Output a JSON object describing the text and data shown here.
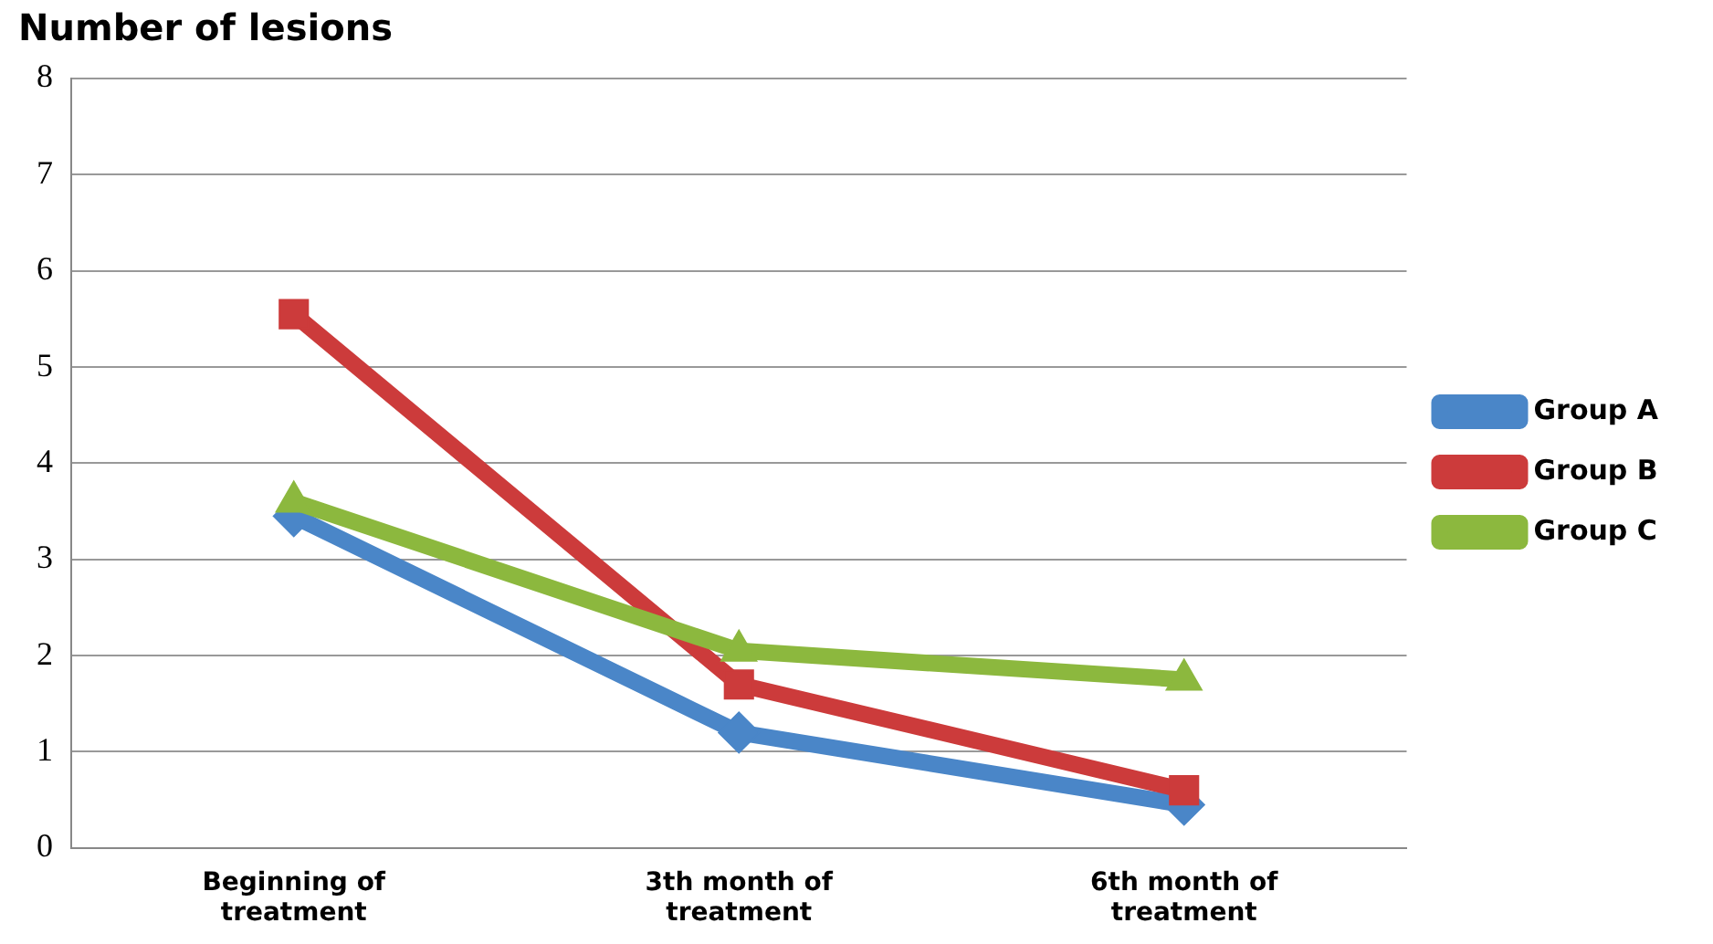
{
  "chart_data": {
    "type": "line",
    "title": "Number of lesions",
    "categories": [
      "Beginning of treatment",
      "3th month of treatment",
      "6th month of treatment"
    ],
    "series": [
      {
        "name": "Group A",
        "color": "#4a86c8",
        "marker": "diamond",
        "values": [
          3.45,
          1.2,
          0.45
        ]
      },
      {
        "name": "Group B",
        "color": "#cc3b3b",
        "marker": "square",
        "values": [
          5.55,
          1.7,
          0.6
        ]
      },
      {
        "name": "Group C",
        "color": "#8cb83e",
        "marker": "triangle",
        "values": [
          3.6,
          2.05,
          1.75
        ]
      }
    ],
    "ylim": [
      0,
      8
    ],
    "yticks": [
      0,
      1,
      2,
      3,
      4,
      5,
      6,
      7,
      8
    ],
    "grid": "y",
    "legend": "right"
  }
}
